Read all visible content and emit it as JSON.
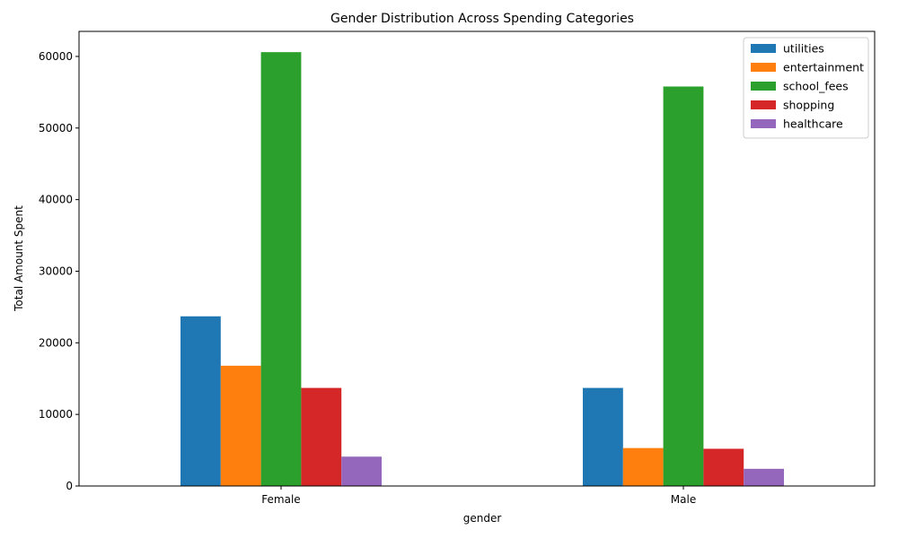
{
  "chart_data": {
    "type": "bar",
    "title": "Gender Distribution Across Spending Categories",
    "xlabel": "gender",
    "ylabel": "Total Amount Spent",
    "categories": [
      "Female",
      "Male"
    ],
    "ylim": [
      0,
      63500
    ],
    "yticks": [
      0,
      10000,
      20000,
      30000,
      40000,
      50000,
      60000
    ],
    "grid": false,
    "legend_position": "top-right",
    "series": [
      {
        "name": "utilities",
        "color": "#1f77b4",
        "values": [
          23700,
          13700
        ]
      },
      {
        "name": "entertainment",
        "color": "#ff7f0e",
        "values": [
          16800,
          5300
        ]
      },
      {
        "name": "school_fees",
        "color": "#2ca02c",
        "values": [
          60600,
          55800
        ]
      },
      {
        "name": "shopping",
        "color": "#d62728",
        "values": [
          13700,
          5200
        ]
      },
      {
        "name": "healthcare",
        "color": "#9467bd",
        "values": [
          4100,
          2400
        ]
      }
    ]
  }
}
